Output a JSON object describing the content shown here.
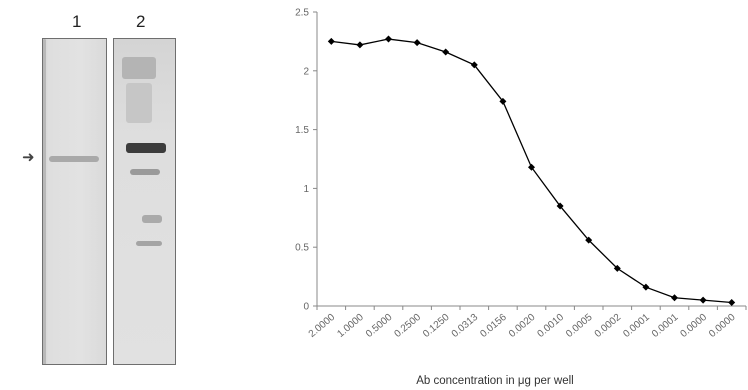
{
  "blot": {
    "lane_labels": [
      "1",
      "2"
    ]
  },
  "chart_data": {
    "type": "line",
    "title": "",
    "xlabel": "Ab concentration in μg per well",
    "ylabel": "",
    "categories": [
      "2.0000",
      "1.0000",
      "0.5000",
      "0.2500",
      "0.1250",
      "0.0313",
      "0.0156",
      "0.0020",
      "0.0010",
      "0.0005",
      "0.0002",
      "0.0001",
      "0.0001",
      "0.0000",
      "0.0000"
    ],
    "series": [
      {
        "values": [
          2.25,
          2.22,
          2.27,
          2.24,
          2.16,
          2.05,
          1.74,
          1.18,
          0.85,
          0.56,
          0.32,
          0.16,
          0.07,
          0.05,
          0.03
        ]
      }
    ],
    "ylim": [
      0,
      2.5
    ],
    "yticks": [
      "0",
      "0.5",
      "1",
      "1.5",
      "2",
      "2.5"
    ],
    "grid": false,
    "legend": "none",
    "marker": "diamond",
    "line_color": "#000000"
  }
}
